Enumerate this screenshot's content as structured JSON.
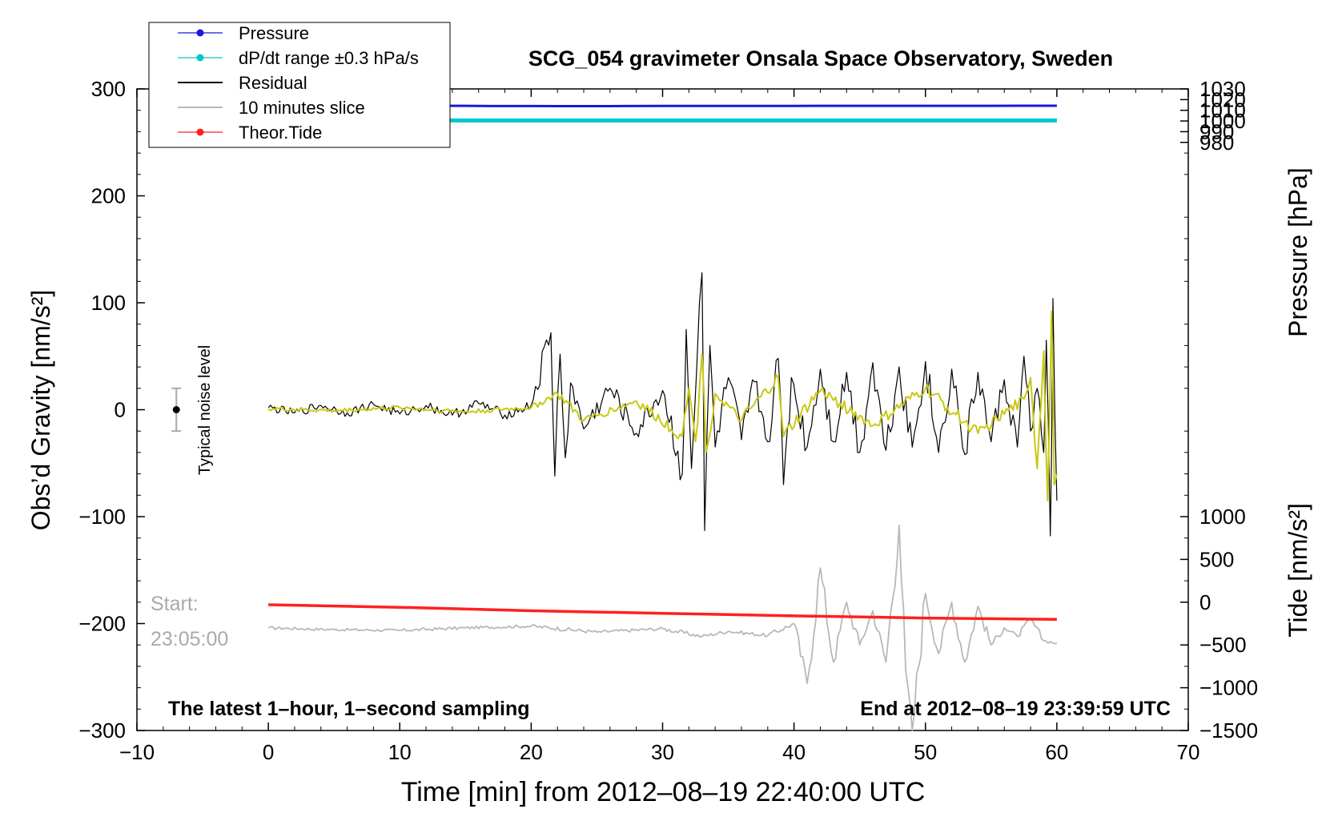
{
  "chart_data": {
    "type": "line",
    "title": "SCG_054 gravimeter Onsala Space Observatory, Sweden",
    "xlabel": "Time [min] from 2012–08–19 22:40:00 UTC",
    "ylabel_left": "Obs’d Gravity [nm/s²]",
    "ylabel_right_pressure": "Pressure [hPa]",
    "ylabel_right_tide": "Tide [nm/s²]",
    "xlim": [
      -10,
      70
    ],
    "ylim": [
      -300,
      300
    ],
    "pressure_axis": {
      "range": [
        -300,
        300
      ],
      "value_at_bottom": 430,
      "value_at_top": 1030
    },
    "tide_axis": {
      "range": [
        -1500,
        6000
      ],
      "value_at_bottom": -1500
    },
    "x_ticks": [
      -10,
      0,
      10,
      20,
      30,
      40,
      50,
      60,
      70
    ],
    "x_tick_labels": [
      "−10",
      "0",
      "10",
      "20",
      "30",
      "40",
      "50",
      "60",
      "70"
    ],
    "y_ticks": [
      -300,
      -200,
      -100,
      0,
      100,
      200,
      300
    ],
    "y_tick_labels": [
      "−300",
      "−200",
      "−100",
      "0",
      "100",
      "200",
      "300"
    ],
    "pressure_ticks": [
      980,
      990,
      1000,
      1010,
      1020,
      1030
    ],
    "pressure_tick_labels": [
      "980",
      "990",
      "1000",
      "1010",
      "1020",
      "1030"
    ],
    "tide_ticks": [
      -1500,
      -1000,
      -500,
      0,
      500,
      1000
    ],
    "tide_tick_labels": [
      "−1500",
      "−1000",
      "−500",
      "0",
      "500",
      "1000"
    ],
    "legend": {
      "placement": "top-left",
      "entries": [
        {
          "label": "Pressure",
          "color": "#1818e0",
          "marker": true
        },
        {
          "label": "dP/dt range ±0.3 hPa/s",
          "color": "#00c8c8",
          "marker": true
        },
        {
          "label": "Residual",
          "color": "#000000",
          "marker": false
        },
        {
          "label": "10 minutes slice",
          "color": "#b8b8b8",
          "marker": false
        },
        {
          "label": "Theor.Tide",
          "color": "#ff2020",
          "marker": true
        }
      ]
    },
    "series": [
      {
        "name": "Pressure",
        "axis": "pressure",
        "color": "#1818e0",
        "x": [
          0,
          5,
          10,
          15,
          17,
          20,
          22,
          25,
          27,
          30,
          35,
          40,
          45,
          50,
          55,
          60
        ],
        "values": [
          1014.3,
          1014.3,
          1014.3,
          1014.2,
          1014.0,
          1014.0,
          1013.9,
          1013.9,
          1014.0,
          1014.1,
          1014.1,
          1014.1,
          1014.2,
          1014.2,
          1014.2,
          1014.3
        ]
      },
      {
        "name": "dP/dt range ±0.3 hPa/s",
        "axis": "pressure",
        "color": "#00c8c8",
        "x": [
          0,
          60
        ],
        "values": [
          1000.5,
          1000.5
        ]
      },
      {
        "name": "Residual",
        "axis": "gravity",
        "color": "#000000",
        "x": [
          0,
          2,
          4,
          6,
          8,
          10,
          12,
          14,
          16,
          18,
          20,
          21.5,
          21.8,
          22.2,
          22.6,
          23,
          24,
          26,
          28,
          30,
          31.5,
          31.8,
          32.2,
          32.6,
          33,
          33.2,
          33.6,
          34,
          35,
          36,
          37,
          38,
          38.8,
          39.2,
          39.8,
          41,
          42,
          43,
          44,
          45,
          46,
          47,
          48,
          49,
          50,
          51,
          52,
          53,
          54,
          55,
          56,
          57,
          57.5,
          58,
          58.5,
          59,
          59.2,
          59.5,
          59.7,
          60
        ],
        "values": [
          2,
          -3,
          4,
          -3,
          5,
          -4,
          4,
          -5,
          6,
          -5,
          4,
          72,
          -62,
          52,
          -45,
          25,
          -18,
          20,
          -22,
          18,
          -60,
          75,
          -55,
          40,
          128,
          -113,
          60,
          -35,
          30,
          -28,
          26,
          -30,
          48,
          -70,
          30,
          -35,
          38,
          -30,
          35,
          -40,
          44,
          -38,
          40,
          -35,
          45,
          -40,
          38,
          -42,
          35,
          -30,
          28,
          -35,
          50,
          -20,
          20,
          -40,
          65,
          -118,
          104,
          -85
        ]
      },
      {
        "name": "Residual (smoothed)",
        "axis": "gravity",
        "color": "#c8c814",
        "x": [
          0,
          5,
          10,
          15,
          20,
          22,
          24,
          28,
          31.5,
          32,
          32.5,
          33,
          33.3,
          34,
          36,
          38.8,
          39.2,
          42,
          46,
          50,
          54,
          57.5,
          58,
          58.5,
          59,
          59.3,
          59.6,
          59.8,
          60
        ],
        "values": [
          1,
          -1,
          2,
          -2,
          2,
          15,
          -10,
          8,
          -25,
          20,
          -30,
          52,
          -40,
          15,
          -10,
          30,
          -25,
          18,
          -15,
          20,
          -22,
          10,
          30,
          -55,
          55,
          -85,
          92,
          -70,
          -60
        ]
      },
      {
        "name": "10 minutes slice",
        "axis": "tide",
        "color": "#b8b8b8",
        "x": [
          0,
          5,
          10,
          15,
          20,
          25,
          30,
          33,
          35,
          38,
          40,
          41,
          42,
          43,
          44,
          45,
          46,
          47,
          48,
          48.5,
          49,
          50,
          51,
          52,
          53,
          54,
          55,
          56,
          57,
          58,
          59,
          60
        ],
        "values": [
          -300,
          -320,
          -330,
          -300,
          -280,
          -350,
          -310,
          -400,
          -340,
          -390,
          -250,
          -950,
          400,
          -700,
          0,
          -500,
          -100,
          -700,
          900,
          -800,
          -1500,
          100,
          -600,
          0,
          -700,
          -50,
          -500,
          -300,
          -400,
          -200,
          -450,
          -480
        ]
      },
      {
        "name": "Theor.Tide",
        "axis": "tide",
        "color": "#ff2020",
        "x": [
          0,
          10,
          20,
          30,
          40,
          50,
          60
        ],
        "values": [
          -30,
          -60,
          -100,
          -130,
          -160,
          -185,
          -200
        ]
      }
    ],
    "annotations": [
      {
        "text": "Typical noise level",
        "rotation": -90,
        "gravity_range": [
          -20,
          20
        ],
        "x": -7.0
      },
      {
        "text": "Start:",
        "color": "#aaaaaa"
      },
      {
        "text": "23:05:00",
        "color": "#aaaaaa"
      },
      {
        "text": "The latest 1–hour, 1–second sampling"
      },
      {
        "text": "End at 2012–08–19 23:39:59 UTC"
      }
    ]
  }
}
